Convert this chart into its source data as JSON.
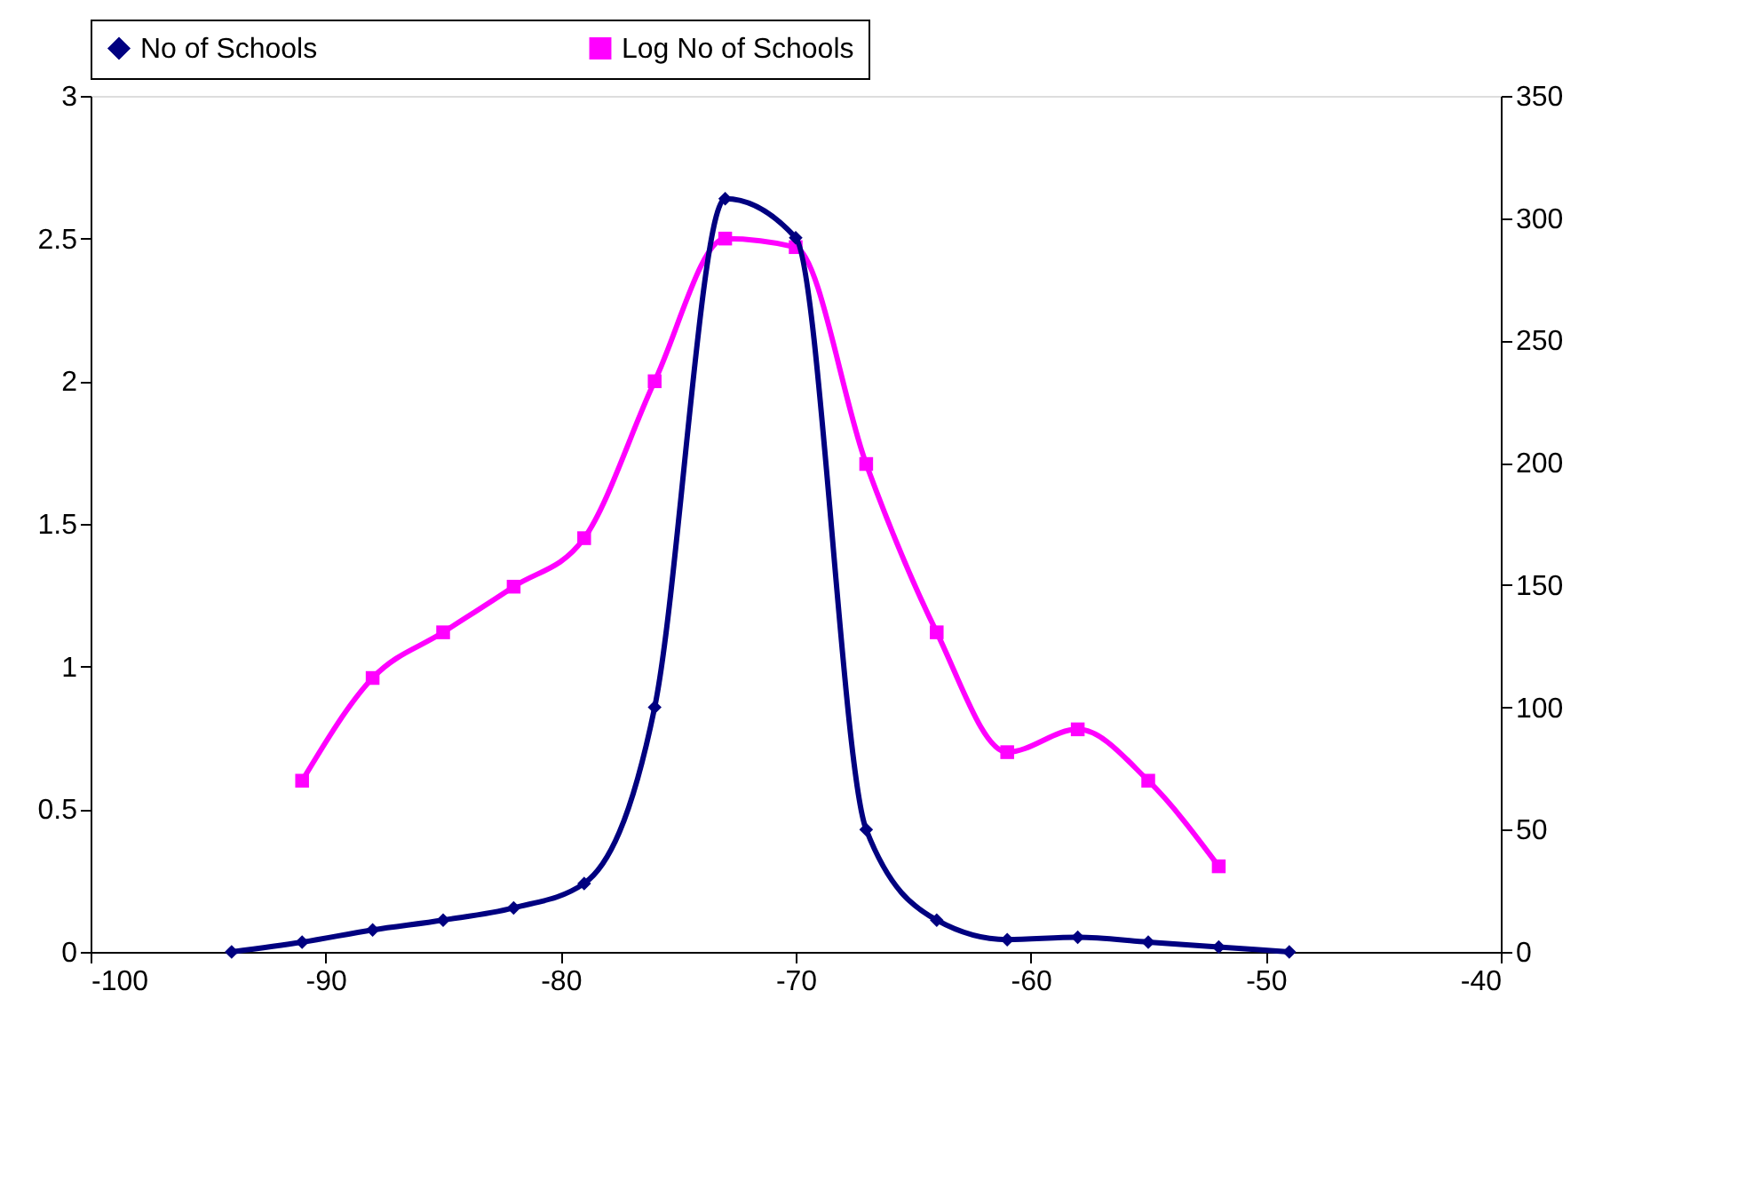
{
  "chart_data": {
    "type": "line",
    "xlim": [
      -100,
      -40
    ],
    "xticks": [
      -100,
      -90,
      -80,
      -70,
      -60,
      -50,
      -40
    ],
    "ylim": [
      0,
      3
    ],
    "yticks": [
      0,
      0.5,
      1,
      1.5,
      2,
      2.5,
      3
    ],
    "y2lim": [
      0,
      350
    ],
    "y2ticks": [
      0,
      50,
      100,
      150,
      200,
      250,
      300,
      350
    ],
    "legend": "top",
    "grid": false,
    "line_style": "solid",
    "series": [
      {
        "name": "No of Schools",
        "color": "#000080",
        "axis": "y2",
        "marker": "diamond",
        "x": [
          -94,
          -91,
          -88,
          -85,
          -82,
          -79,
          -76,
          -73,
          -70,
          -67,
          -64,
          -61,
          -58,
          -55,
          -52,
          -49
        ],
        "values": [
          0,
          4,
          9,
          13,
          18,
          28,
          100,
          308,
          292,
          50,
          13,
          5,
          6,
          4,
          2,
          0
        ]
      },
      {
        "name": "Log No of Schools",
        "color": "#ff00ff",
        "axis": "y",
        "marker": "square",
        "x": [
          -91,
          -88,
          -85,
          -82,
          -79,
          -76,
          -73,
          -70,
          -67,
          -64,
          -61,
          -58,
          -55,
          -52
        ],
        "values": [
          0.6,
          0.96,
          1.12,
          1.28,
          1.45,
          2.0,
          2.5,
          2.47,
          1.71,
          1.12,
          0.7,
          0.78,
          0.6,
          0.3
        ]
      }
    ]
  }
}
